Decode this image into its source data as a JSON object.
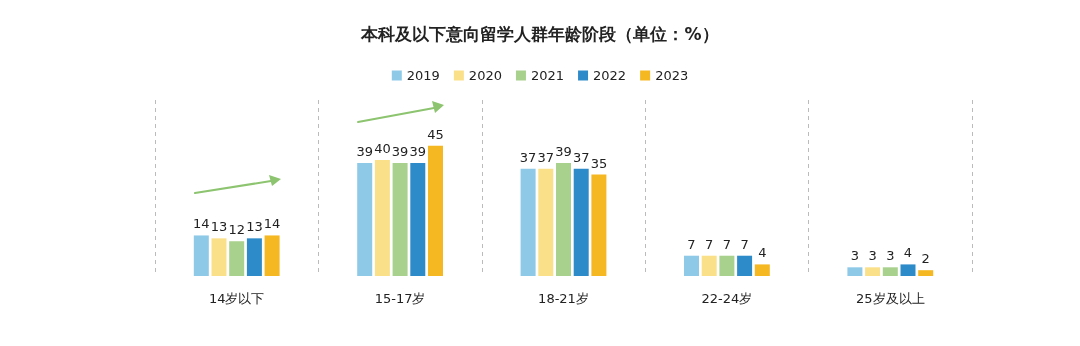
{
  "chart_data": {
    "type": "bar",
    "title": "本科及以下意向留学人群年龄阶段（单位：%）",
    "categories": [
      "14岁以下",
      "15-17岁",
      "18-21岁",
      "22-24岁",
      "25岁及以上"
    ],
    "series": [
      {
        "name": "2019",
        "color": "#8ec9e8",
        "values": [
          14,
          39,
          37,
          7,
          3
        ]
      },
      {
        "name": "2020",
        "color": "#fbe08a",
        "values": [
          13,
          40,
          37,
          7,
          3
        ]
      },
      {
        "name": "2021",
        "color": "#a9d18e",
        "values": [
          12,
          39,
          39,
          7,
          3
        ]
      },
      {
        "name": "2022",
        "color": "#2e8bc9",
        "values": [
          13,
          39,
          37,
          7,
          4
        ]
      },
      {
        "name": "2023",
        "color": "#f5b722",
        "values": [
          14,
          45,
          35,
          4,
          2
        ]
      }
    ],
    "data_labels": true,
    "legend": "top",
    "grid": "x"
  }
}
